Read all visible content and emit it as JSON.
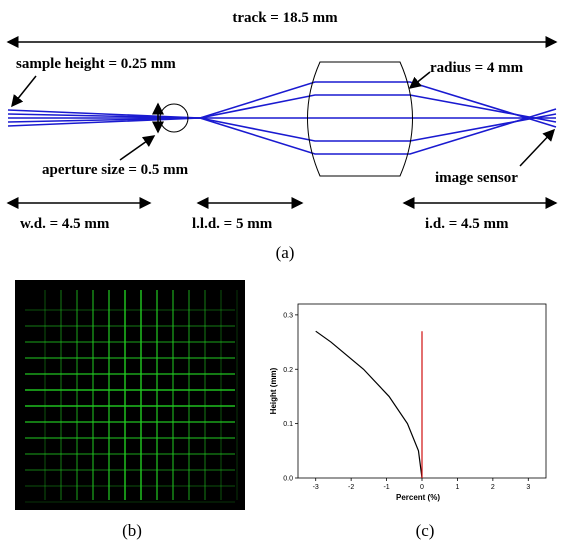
{
  "figure": {
    "track": "track = 18.5 mm",
    "sample_height": "sample height = 0.25 mm",
    "radius": "radius = 4 mm",
    "aperture": "aperture size = 0.5 mm",
    "image_sensor": "image sensor",
    "wd": "w.d. = 4.5 mm",
    "lld": "l.l.d. = 5 mm",
    "id": "i.d. = 4.5 mm",
    "caption_a": "(a)",
    "caption_b": "(b)",
    "caption_c": "(c)"
  },
  "chart_data": {
    "type": "line",
    "xlabel": "Percent (%)",
    "ylabel": "Height (mm)",
    "series": [
      {
        "color": "#000000",
        "x": [
          0,
          -0.1,
          -0.41,
          -0.93,
          -1.65,
          -2.57,
          -3.0
        ],
        "values": [
          0,
          0.05,
          0.1,
          0.15,
          0.2,
          0.25,
          0.27
        ]
      },
      {
        "color": "#d01010",
        "x": [
          0,
          0
        ],
        "values": [
          0,
          0.27
        ]
      }
    ],
    "xlim": [
      -3.5,
      3.5
    ],
    "ylim": [
      0,
      0.32
    ],
    "xticks": [
      -3,
      -2,
      -1,
      0,
      1,
      2,
      3
    ],
    "yticks": [
      {
        "value": 0,
        "label": "0.0"
      },
      0.1,
      0.2,
      0.3
    ]
  }
}
